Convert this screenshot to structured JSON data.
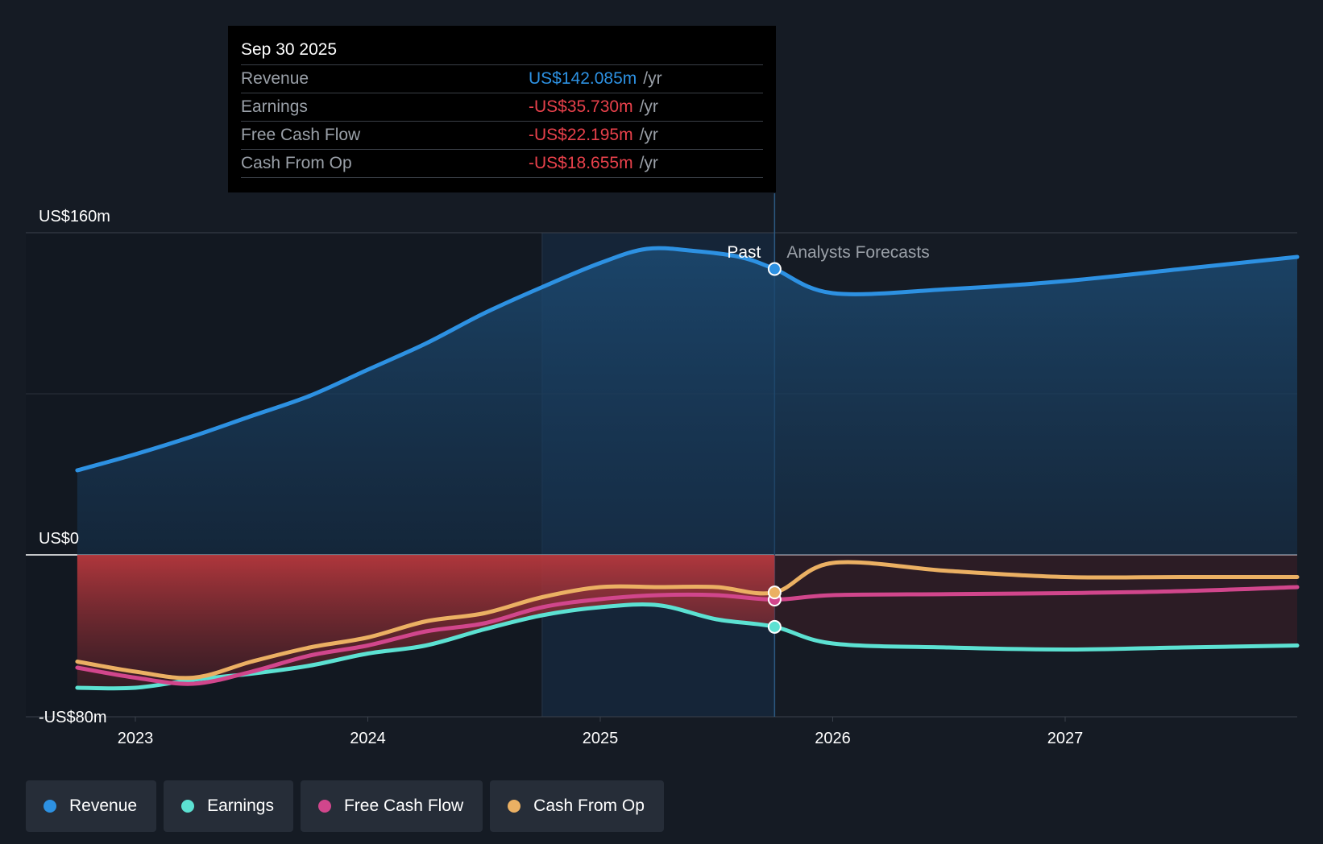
{
  "tooltip": {
    "date": "Sep 30 2025",
    "unit": "/yr",
    "rows": [
      {
        "label": "Revenue",
        "value": "US$142.085m",
        "color": "#2d91e2"
      },
      {
        "label": "Earnings",
        "value": "-US$35.730m",
        "color": "#e8414b"
      },
      {
        "label": "Free Cash Flow",
        "value": "-US$22.195m",
        "color": "#e8414b"
      },
      {
        "label": "Cash From Op",
        "value": "-US$18.655m",
        "color": "#e8414b"
      }
    ]
  },
  "labels": {
    "past": "Past",
    "forecast": "Analysts Forecasts"
  },
  "legend": [
    {
      "label": "Revenue",
      "color": "#2d91e2"
    },
    {
      "label": "Earnings",
      "color": "#5ce1d2"
    },
    {
      "label": "Free Cash Flow",
      "color": "#d1468c"
    },
    {
      "label": "Cash From Op",
      "color": "#ebb063"
    }
  ],
  "chart_data": {
    "type": "line",
    "title": "",
    "xlabel": "",
    "ylabel": "",
    "x_ticks": [
      "2023",
      "2024",
      "2025",
      "2026",
      "2027"
    ],
    "x_tick_values": [
      2023.0,
      2024.0,
      2025.0,
      2026.0,
      2027.0
    ],
    "y_ticks": [
      {
        "label": "US$160m",
        "value": 160
      },
      {
        "label": "US$0",
        "value": 0
      },
      {
        "label": "-US$80m",
        "value": -80
      }
    ],
    "ylim": [
      -80,
      160
    ],
    "xlim": [
      2022.53,
      2028.0
    ],
    "past_end": 2025.75,
    "highlight_start": 2024.75,
    "series": [
      {
        "name": "Revenue",
        "color": "#2d91e2",
        "x": [
          2022.75,
          2023.0,
          2023.25,
          2023.5,
          2023.75,
          2024.0,
          2024.25,
          2024.5,
          2024.75,
          2025.0,
          2025.2,
          2025.4,
          2025.6,
          2025.75,
          2026.0,
          2026.5,
          2027.0,
          2027.5,
          2028.0
        ],
        "values": [
          42,
          50,
          59,
          69,
          79,
          92,
          105,
          120,
          133,
          145,
          152,
          151,
          148,
          142,
          130,
          132,
          136,
          142,
          148
        ]
      },
      {
        "name": "Earnings",
        "color": "#5ce1d2",
        "x": [
          2022.75,
          2023.0,
          2023.25,
          2023.5,
          2023.75,
          2024.0,
          2024.25,
          2024.5,
          2024.75,
          2025.0,
          2025.25,
          2025.5,
          2025.75,
          2026.0,
          2026.5,
          2027.0,
          2027.5,
          2028.0
        ],
        "values": [
          -66,
          -66,
          -62,
          -59,
          -55,
          -49,
          -45,
          -37,
          -30,
          -26,
          -25,
          -32,
          -35.73,
          -44,
          -46,
          -47,
          -46,
          -45
        ]
      },
      {
        "name": "Free Cash Flow",
        "color": "#d1468c",
        "x": [
          2022.75,
          2023.0,
          2023.25,
          2023.5,
          2023.75,
          2024.0,
          2024.25,
          2024.5,
          2024.75,
          2025.0,
          2025.25,
          2025.5,
          2025.75,
          2026.0,
          2026.5,
          2027.0,
          2027.5,
          2028.0
        ],
        "values": [
          -56,
          -61,
          -64,
          -58,
          -50,
          -45,
          -38,
          -34,
          -26,
          -22,
          -20,
          -20,
          -22.195,
          -20,
          -19.5,
          -19,
          -18,
          -16
        ]
      },
      {
        "name": "Cash From Op",
        "color": "#ebb063",
        "x": [
          2022.75,
          2023.0,
          2023.25,
          2023.5,
          2023.75,
          2024.0,
          2024.25,
          2024.5,
          2024.75,
          2025.0,
          2025.25,
          2025.5,
          2025.75,
          2026.0,
          2026.5,
          2027.0,
          2027.5,
          2028.0
        ],
        "values": [
          -53,
          -58,
          -61,
          -53,
          -46,
          -41,
          -33,
          -29,
          -21,
          -16,
          -16,
          -16,
          -18.655,
          -4,
          -8,
          -11,
          -11,
          -11
        ]
      }
    ]
  }
}
